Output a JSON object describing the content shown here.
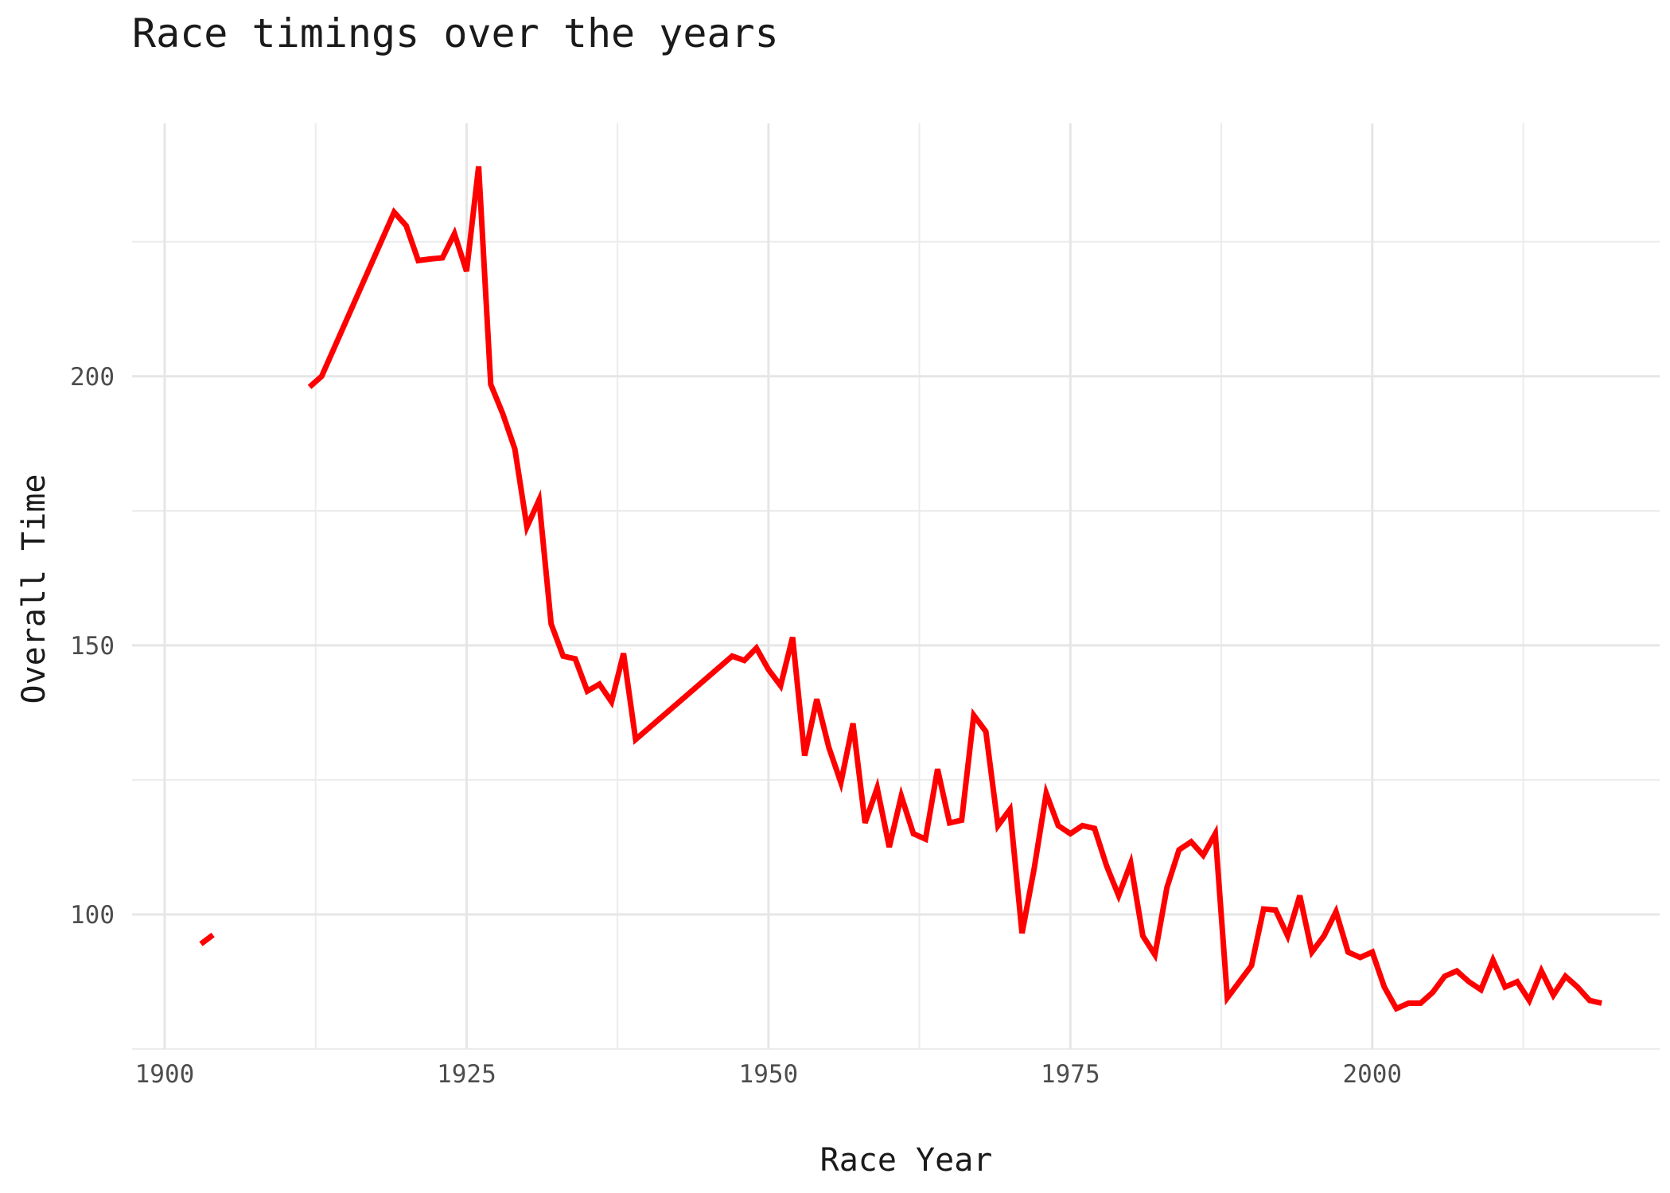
{
  "chart_data": {
    "type": "line",
    "title": "Race timings over the years",
    "xlabel": "Race Year",
    "ylabel": "Overall Time",
    "xlim": [
      1897.3,
      2023.8
    ],
    "ylim": [
      75,
      247
    ],
    "x_ticks": [
      1900,
      1925,
      1950,
      1975,
      2000
    ],
    "y_ticks": [
      100,
      150,
      200
    ],
    "x_minor_ticks": [
      1912.5,
      1937.5,
      1962.5,
      1987.5,
      2012.5
    ],
    "y_minor_ticks": [
      75,
      125,
      175,
      225
    ],
    "grid": true,
    "legend": "none",
    "line_color": "#ff0000",
    "segments": [
      {
        "x": [
          1903,
          1904
        ],
        "y": [
          94.5,
          96.2
        ]
      },
      {
        "x": [
          1912,
          1913,
          1919,
          1920,
          1921,
          1922,
          1923,
          1924,
          1925,
          1926,
          1927,
          1928,
          1929,
          1930,
          1931,
          1932,
          1933,
          1934,
          1935,
          1936,
          1937,
          1938,
          1939,
          1947,
          1948,
          1949,
          1950,
          1951,
          1952,
          1953,
          1954,
          1955,
          1956,
          1957,
          1958,
          1959,
          1960,
          1961,
          1962,
          1963,
          1964,
          1965,
          1966,
          1967,
          1968,
          1969,
          1970,
          1971,
          1972,
          1973,
          1974,
          1975,
          1976,
          1977,
          1978,
          1979,
          1980,
          1981,
          1982,
          1983,
          1984,
          1985,
          1986,
          1987,
          1988,
          1989,
          1990,
          1991,
          1992,
          1993,
          1994,
          1995,
          1996,
          1997,
          1998,
          1999,
          2000,
          2001,
          2002,
          2003,
          2004,
          2005,
          2006,
          2007,
          2008,
          2009,
          2010,
          2011,
          2012,
          2013,
          2014,
          2015,
          2016,
          2017,
          2018,
          2019
        ],
        "y": [
          198,
          200,
          230.5,
          228,
          221.5,
          221.8,
          222,
          226.5,
          219.5,
          239,
          198.5,
          193,
          186.5,
          172,
          177,
          154,
          148,
          147.5,
          141.5,
          142.8,
          139.5,
          148.5,
          132.5,
          148,
          147.2,
          149.5,
          145.5,
          142.5,
          151.5,
          129.5,
          140,
          131,
          124.5,
          135.5,
          117,
          123.5,
          112.5,
          122,
          115,
          114,
          127,
          117,
          117.5,
          137,
          134,
          116.5,
          119.5,
          96.5,
          108.5,
          122.5,
          116.5,
          115,
          116.5,
          116,
          109,
          103.5,
          109.5,
          96,
          92.5,
          105,
          112,
          113.5,
          111,
          115,
          84.5,
          87.5,
          90.5,
          101,
          100.8,
          96,
          103.5,
          93,
          96,
          100.5,
          93,
          92,
          93,
          86.5,
          82.5,
          83.5,
          83.5,
          85.5,
          88.5,
          89.5,
          87.5,
          86,
          91.5,
          86.5,
          87.5,
          84,
          89.5,
          85,
          88.5,
          86.5,
          84,
          83.5
        ]
      }
    ]
  }
}
